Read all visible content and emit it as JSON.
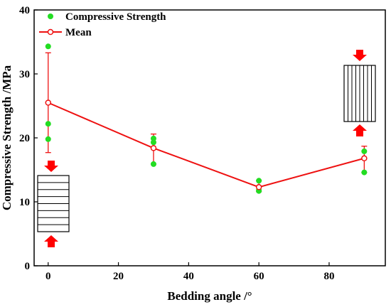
{
  "chart_data": {
    "type": "scatter",
    "xlabel": "Bedding angle /°",
    "ylabel": "Compressive Strength /MPa",
    "xlim": [
      -4,
      96
    ],
    "ylim": [
      0,
      40
    ],
    "x_ticks": [
      0,
      20,
      40,
      60,
      80
    ],
    "y_ticks": [
      0,
      10,
      20,
      30,
      40
    ],
    "legend": {
      "position": "top-left"
    },
    "series": [
      {
        "name": "Compressive Strength",
        "kind": "points",
        "color": "#22dd22",
        "points": [
          [
            0,
            34.3
          ],
          [
            0,
            22.2
          ],
          [
            0,
            19.8
          ],
          [
            30,
            19.9
          ],
          [
            30,
            19.3
          ],
          [
            30,
            15.9
          ],
          [
            60,
            13.3
          ],
          [
            60,
            11.8
          ],
          [
            60,
            11.7
          ],
          [
            90,
            17.9
          ],
          [
            90,
            14.6
          ]
        ]
      },
      {
        "name": "Mean",
        "kind": "line-errorbar",
        "color": "#ee1111",
        "x": [
          0,
          30,
          60,
          90
        ],
        "y": [
          25.5,
          18.4,
          12.3,
          16.8
        ],
        "err_low": [
          17.7,
          15.9,
          11.6,
          14.6
        ],
        "err_high": [
          33.3,
          20.6,
          13.3,
          18.7
        ]
      }
    ],
    "annotations": [
      {
        "name": "horizontal-bedding-specimen",
        "orientation": "horizontal"
      },
      {
        "name": "vertical-bedding-specimen",
        "orientation": "vertical"
      }
    ]
  }
}
